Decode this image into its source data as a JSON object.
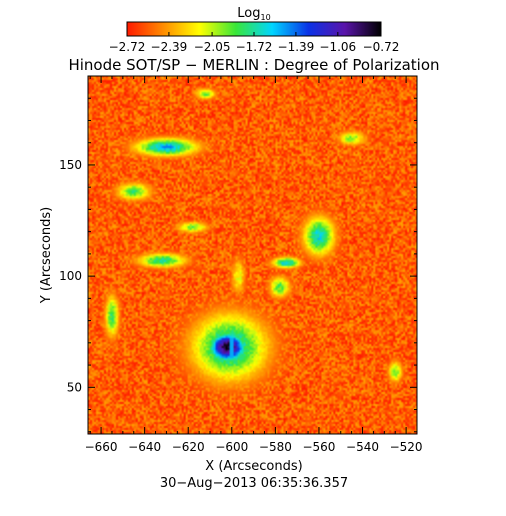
{
  "chart_data": {
    "type": "heatmap",
    "title": "Hinode SOT/SP − MERLIN : Degree of Polarization",
    "xlabel": "X (Arcseconds)",
    "ylabel": "Y (Arcseconds)",
    "footer": "30−Aug−2013 06:35:36.357",
    "xlim": [
      -666,
      -515
    ],
    "ylim": [
      29,
      190
    ],
    "grid": false,
    "colorbar": {
      "title": "Log",
      "title_subscript": "10",
      "range": [
        -2.72,
        -0.72
      ],
      "tick_values": [
        -2.72,
        -2.39,
        -2.05,
        -1.72,
        -1.39,
        -1.06,
        -0.72
      ],
      "tick_labels": [
        "−2.72",
        "−2.39",
        "−2.05",
        "−1.72",
        "−1.39",
        "−1.06",
        "−0.72"
      ],
      "colors": [
        "#ff1a00",
        "#ff8c00",
        "#ffff00",
        "#39e639",
        "#00d5ff",
        "#0a32e6",
        "#5a14aa",
        "#000000"
      ]
    },
    "x_ticks": [
      {
        "value": -660,
        "label": "−660"
      },
      {
        "value": -640,
        "label": "−640"
      },
      {
        "value": -620,
        "label": "−620"
      },
      {
        "value": -600,
        "label": "−600"
      },
      {
        "value": -580,
        "label": "−580"
      },
      {
        "value": -560,
        "label": "−560"
      },
      {
        "value": -540,
        "label": "−540"
      },
      {
        "value": -520,
        "label": "−520"
      }
    ],
    "y_ticks": [
      {
        "value": 50,
        "label": "50"
      },
      {
        "value": 100,
        "label": "100"
      },
      {
        "value": 150,
        "label": "150"
      }
    ],
    "background_level": -2.55,
    "features": [
      {
        "kind": "sunspot-umbra",
        "x": -602,
        "y": 68,
        "rx": 11,
        "ry": 8.5,
        "peak": -0.75
      },
      {
        "kind": "sunspot-penumbra",
        "x": -601,
        "y": 68,
        "rx": 22,
        "ry": 19,
        "peak": -1.6
      },
      {
        "kind": "plage",
        "x": -630,
        "y": 158,
        "rx": 18,
        "ry": 5,
        "peak": -1.5
      },
      {
        "kind": "plage",
        "x": -645,
        "y": 138,
        "rx": 10,
        "ry": 5,
        "peak": -1.85
      },
      {
        "kind": "plage",
        "x": -632,
        "y": 107,
        "rx": 14,
        "ry": 4,
        "peak": -1.7
      },
      {
        "kind": "plage",
        "x": -618,
        "y": 122,
        "rx": 9,
        "ry": 3,
        "peak": -1.9
      },
      {
        "kind": "plage",
        "x": -560,
        "y": 118,
        "rx": 9,
        "ry": 11,
        "peak": -1.6
      },
      {
        "kind": "plage",
        "x": -575,
        "y": 106,
        "rx": 8,
        "ry": 3,
        "peak": -1.55
      },
      {
        "kind": "plage",
        "x": -578,
        "y": 95,
        "rx": 6,
        "ry": 6,
        "peak": -1.85
      },
      {
        "kind": "plage",
        "x": -545,
        "y": 162,
        "rx": 8,
        "ry": 4,
        "peak": -1.95
      },
      {
        "kind": "network",
        "x": -597,
        "y": 100,
        "rx": 4,
        "ry": 10,
        "peak": -2.1
      },
      {
        "kind": "network",
        "x": -655,
        "y": 82,
        "rx": 4,
        "ry": 12,
        "peak": -1.8
      },
      {
        "kind": "network",
        "x": -525,
        "y": 57,
        "rx": 4,
        "ry": 6,
        "peak": -1.9
      },
      {
        "kind": "network",
        "x": -612,
        "y": 182,
        "rx": 6,
        "ry": 3,
        "peak": -1.9
      }
    ]
  }
}
